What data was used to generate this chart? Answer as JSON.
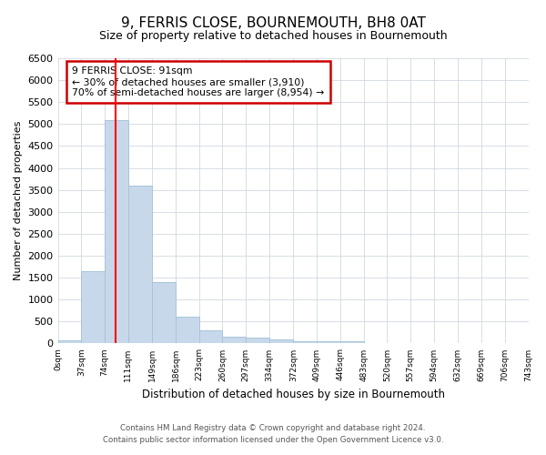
{
  "title": "9, FERRIS CLOSE, BOURNEMOUTH, BH8 0AT",
  "subtitle": "Size of property relative to detached houses in Bournemouth",
  "xlabel": "Distribution of detached houses by size in Bournemouth",
  "ylabel": "Number of detached properties",
  "bar_values": [
    75,
    1650,
    5100,
    3600,
    1400,
    600,
    300,
    160,
    140,
    100,
    50,
    50,
    50,
    0,
    0,
    0,
    0,
    0,
    0,
    0
  ],
  "bin_edges": [
    0,
    37,
    74,
    111,
    149,
    186,
    223,
    260,
    297,
    334,
    372,
    409,
    446,
    483,
    520,
    557,
    594,
    632,
    669,
    706,
    743
  ],
  "tick_labels": [
    "0sqm",
    "37sqm",
    "74sqm",
    "111sqm",
    "149sqm",
    "186sqm",
    "223sqm",
    "260sqm",
    "297sqm",
    "334sqm",
    "372sqm",
    "409sqm",
    "446sqm",
    "483sqm",
    "520sqm",
    "557sqm",
    "594sqm",
    "632sqm",
    "669sqm",
    "706sqm",
    "743sqm"
  ],
  "ylim": [
    0,
    6500
  ],
  "bar_color": "#c8d8eb",
  "bar_edgecolor": "#a8c4d8",
  "grid_color": "#d0d8e0",
  "red_line_x": 91,
  "annotation_title": "9 FERRIS CLOSE: 91sqm",
  "annotation_line1": "← 30% of detached houses are smaller (3,910)",
  "annotation_line2": "70% of semi-detached houses are larger (8,954) →",
  "annotation_box_facecolor": "#ffffff",
  "annotation_box_edgecolor": "#cc0000",
  "footer_line1": "Contains HM Land Registry data © Crown copyright and database right 2024.",
  "footer_line2": "Contains public sector information licensed under the Open Government Licence v3.0.",
  "yticks": [
    0,
    500,
    1000,
    1500,
    2000,
    2500,
    3000,
    3500,
    4000,
    4500,
    5000,
    5500,
    6000,
    6500
  ],
  "background_color": "#ffffff",
  "title_fontsize": 11,
  "subtitle_fontsize": 9
}
